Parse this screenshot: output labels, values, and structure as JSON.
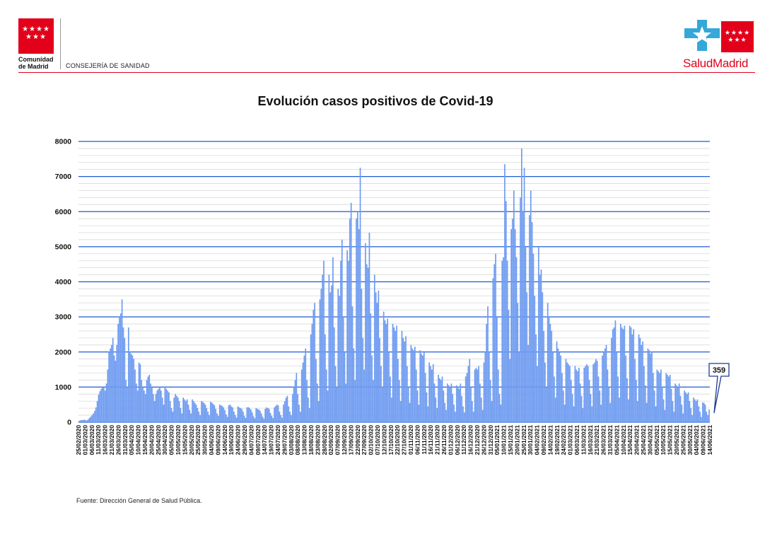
{
  "header": {
    "left_logo": {
      "line1": "Comunidad",
      "line2": "de Madrid",
      "icon": "seven-stars-red-flag-icon"
    },
    "department": "CONSEJERÍA DE SANIDAD",
    "right_logo": {
      "name": "SaludMadrid",
      "icon": "star-cross-health-icon"
    }
  },
  "colors": {
    "bars": "#6e9bf0",
    "gridline_major": "#1f5bd6",
    "gridline_minor": "#d9d9d9",
    "brand_red": "#e3001b",
    "annotation": "#1f3a93"
  },
  "footer": {
    "source": "Fuente: Dirección General de Salud Pública."
  },
  "chart_data": {
    "type": "bar",
    "title": "Evolución casos positivos de Covid-19",
    "xlabel": "",
    "ylabel": "",
    "ylim": [
      0,
      8000
    ],
    "yticks": [
      0,
      1000,
      2000,
      3000,
      4000,
      5000,
      6000,
      7000,
      8000
    ],
    "grid": true,
    "legend": "none",
    "x_start": "25/02/2020",
    "x_end": "14/06/2021",
    "annotation": {
      "label": "359",
      "value": 359,
      "date": "14/06/2021"
    },
    "xtick_labels": [
      "25/02/2020",
      "01/03/2020",
      "06/03/2020",
      "11/03/2020",
      "16/03/2020",
      "21/03/2020",
      "26/03/2020",
      "31/03/2020",
      "05/04/2020",
      "10/04/2020",
      "15/04/2020",
      "20/04/2020",
      "25/04/2020",
      "30/04/2020",
      "05/05/2020",
      "10/05/2020",
      "15/05/2020",
      "20/05/2020",
      "25/05/2020",
      "30/05/2020",
      "04/06/2020",
      "09/06/2020",
      "14/06/2020",
      "19/06/2020",
      "24/06/2020",
      "29/06/2020",
      "04/07/2020",
      "09/07/2020",
      "14/07/2020",
      "19/07/2020",
      "24/07/2020",
      "29/07/2020",
      "03/08/2020",
      "08/08/2020",
      "13/08/2020",
      "18/08/2020",
      "23/08/2020",
      "28/08/2020",
      "02/09/2020",
      "07/09/2020",
      "12/09/2020",
      "17/09/2020",
      "22/09/2020",
      "27/09/2020",
      "02/10/2020",
      "07/10/2020",
      "12/10/2020",
      "17/10/2020",
      "22/10/2020",
      "27/10/2020",
      "01/11/2020",
      "06/11/2020",
      "11/11/2020",
      "16/11/2020",
      "21/11/2020",
      "26/11/2020",
      "01/12/2020",
      "06/12/2020",
      "11/12/2020",
      "16/12/2020",
      "21/12/2020",
      "26/12/2020",
      "31/12/2020",
      "05/01/2021",
      "10/01/2021",
      "15/01/2021",
      "20/01/2021",
      "25/01/2021",
      "30/01/2021",
      "04/02/2021",
      "09/02/2021",
      "14/02/2021",
      "19/02/2021",
      "24/02/2021",
      "01/03/2021",
      "06/03/2021",
      "11/03/2021",
      "16/03/2021",
      "21/03/2021",
      "26/03/2021",
      "31/03/2021",
      "05/04/2021",
      "10/04/2021",
      "15/04/2021",
      "20/04/2021",
      "25/04/2021",
      "30/04/2021",
      "05/05/2021",
      "10/05/2021",
      "15/05/2021",
      "20/05/2021",
      "25/05/2021",
      "30/05/2021",
      "04/06/2021",
      "09/06/2021",
      "14/06/2021"
    ],
    "series": [
      {
        "values": [
          40,
          50,
          60,
          60,
          70,
          60,
          50,
          80,
          120,
          160,
          200,
          250,
          320,
          420,
          600,
          780,
          880,
          950,
          1000,
          980,
          900,
          1100,
          1500,
          2000,
          2100,
          2200,
          2400,
          1900,
          1750,
          2200,
          2800,
          3000,
          3100,
          3500,
          2700,
          2400,
          1200,
          1000,
          2700,
          2000,
          1950,
          1900,
          1800,
          1500,
          1100,
          900,
          1700,
          1650,
          1200,
          1000,
          900,
          800,
          1200,
          1300,
          1350,
          1100,
          1000,
          800,
          600,
          800,
          900,
          950,
          1000,
          900,
          700,
          500,
          1000,
          950,
          900,
          850,
          600,
          400,
          300,
          700,
          800,
          750,
          700,
          600,
          400,
          250,
          700,
          650,
          600,
          650,
          500,
          350,
          250,
          650,
          600,
          550,
          500,
          400,
          300,
          200,
          600,
          580,
          550,
          500,
          400,
          300,
          200,
          580,
          560,
          520,
          480,
          380,
          250,
          180,
          500,
          480,
          460,
          420,
          350,
          220,
          150,
          480,
          500,
          450,
          420,
          300,
          200,
          130,
          450,
          420,
          400,
          380,
          300,
          180,
          120,
          420,
          430,
          400,
          360,
          280,
          170,
          110,
          400,
          380,
          360,
          330,
          250,
          160,
          100,
          380,
          420,
          400,
          380,
          260,
          180,
          120,
          420,
          460,
          500,
          480,
          300,
          200,
          130,
          500,
          600,
          700,
          750,
          450,
          300,
          200,
          800,
          1000,
          1200,
          1400,
          800,
          500,
          300,
          1500,
          1700,
          1900,
          2100,
          1200,
          700,
          400,
          2500,
          2800,
          3200,
          3400,
          1800,
          1100,
          600,
          3500,
          3800,
          4200,
          4600,
          2500,
          1500,
          900,
          4200,
          3700,
          3900,
          4700,
          2700,
          1600,
          1000,
          3800,
          3600,
          4600,
          5200,
          3000,
          2000,
          1100,
          4900,
          4600,
          5800,
          6250,
          3300,
          2100,
          1200,
          5800,
          6000,
          5500,
          7250,
          3800,
          2400,
          1500,
          5100,
          4500,
          4400,
          5400,
          3100,
          1900,
          1200,
          4200,
          3700,
          3400,
          3750,
          2400,
          1600,
          1000,
          3150,
          2900,
          2800,
          2950,
          2000,
          1300,
          700,
          2800,
          2700,
          2600,
          2750,
          1800,
          1200,
          600,
          2600,
          2400,
          2300,
          2450,
          1600,
          1000,
          550,
          2200,
          2100,
          2050,
          2150,
          1500,
          900,
          500,
          2050,
          1950,
          1900,
          2000,
          1400,
          850,
          450,
          1700,
          1600,
          1500,
          1650,
          1100,
          700,
          400,
          1350,
          1250,
          1200,
          1300,
          900,
          550,
          350,
          1100,
          1050,
          1000,
          1100,
          800,
          500,
          300,
          1050,
          1000,
          950,
          1100,
          750,
          450,
          280,
          1300,
          1400,
          1600,
          1800,
          1000,
          600,
          300,
          1500,
          1550,
          1500,
          1600,
          1100,
          700,
          350,
          1700,
          2000,
          2800,
          3300,
          2000,
          1200,
          600,
          4100,
          4500,
          4800,
          3000,
          1500,
          800,
          500,
          4600,
          4700,
          7350,
          6300,
          4600,
          3200,
          1800,
          5500,
          5800,
          6600,
          5500,
          4700,
          3400,
          2000,
          6400,
          7800,
          6000,
          7250,
          5000,
          3700,
          2200,
          5900,
          6600,
          5700,
          4800,
          3600,
          2500,
          1600,
          5000,
          4200,
          4350,
          3700,
          2600,
          1700,
          1000,
          3400,
          3000,
          2800,
          2600,
          2000,
          1300,
          700,
          2300,
          2100,
          2000,
          1900,
          1400,
          900,
          500,
          1800,
          1700,
          1650,
          1600,
          1200,
          800,
          450,
          1600,
          1500,
          1450,
          1550,
          1100,
          750,
          400,
          1550,
          1600,
          1650,
          1600,
          1200,
          800,
          450,
          1650,
          1700,
          1800,
          1750,
          1300,
          900,
          500,
          1900,
          2000,
          2100,
          2200,
          1500,
          1000,
          550,
          2400,
          2650,
          2700,
          2900,
          2000,
          1300,
          700,
          2800,
          2700,
          2650,
          2750,
          1900,
          1250,
          650,
          2750,
          2700,
          2500,
          2650,
          1800,
          1200,
          600,
          2500,
          2400,
          2200,
          2300,
          1600,
          1050,
          550,
          2100,
          2050,
          1950,
          2000,
          1400,
          900,
          450,
          1500,
          1450,
          1400,
          1500,
          1000,
          650,
          350,
          1400,
          1350,
          1300,
          1350,
          950,
          600,
          300,
          1100,
          1050,
          1000,
          1100,
          750,
          500,
          250,
          900,
          850,
          800,
          850,
          600,
          400,
          200,
          700,
          650,
          600,
          650,
          450,
          300,
          150,
          560,
          550,
          500,
          300,
          200,
          359
        ]
      }
    ]
  }
}
